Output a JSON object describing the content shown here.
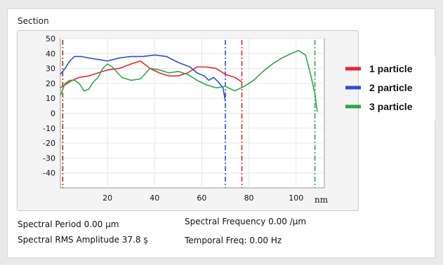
{
  "section_label": "Section",
  "x_unit_label": "nm",
  "info": {
    "spectral_period": "Spectral Period 0.00 µm",
    "spectral_frequency": "Spectral Frequency 0.00 /µm",
    "spectral_rms": "Spectral RMS Amplitude 37.8 ş",
    "temporal_freq": "Temporal Freq: 0.00 Hz"
  },
  "chart_data": {
    "type": "line",
    "xlim": [
      0,
      112
    ],
    "ylim": [
      -50,
      50
    ],
    "x_ticks": [
      20,
      40,
      60,
      80,
      100
    ],
    "y_ticks": [
      50,
      40,
      30,
      20,
      10,
      0,
      -10,
      -20,
      -30,
      -40
    ],
    "grid": true,
    "legend_position": "right",
    "series": [
      {
        "name": "1 particle",
        "color": "#e8262b",
        "x": [
          0,
          2,
          5,
          8,
          12,
          16,
          20,
          25,
          30,
          34,
          38,
          42,
          46,
          50,
          54,
          58,
          62,
          66,
          70,
          74,
          77
        ],
        "y": [
          17,
          19,
          22,
          24,
          25,
          27,
          29,
          30,
          33,
          35,
          30,
          27,
          25,
          25,
          27,
          31,
          31,
          30,
          26,
          24,
          21
        ]
      },
      {
        "name": "2 particle",
        "color": "#2c4fd6",
        "x": [
          0,
          2,
          4,
          6,
          9,
          12,
          16,
          20,
          25,
          30,
          35,
          40,
          45,
          50,
          55,
          58,
          61,
          63,
          65,
          67,
          69,
          70
        ],
        "y": [
          26,
          30,
          35,
          38,
          38,
          37,
          36,
          35,
          37,
          38,
          38,
          39,
          38,
          34,
          31,
          27,
          25,
          22,
          24,
          21,
          17,
          8
        ]
      },
      {
        "name": "3 particle",
        "color": "#2ea54a",
        "x": [
          0,
          2,
          4,
          6,
          8,
          10,
          12,
          14,
          16,
          18,
          20,
          22,
          26,
          30,
          34,
          38,
          42,
          46,
          50,
          54,
          58,
          62,
          66,
          70,
          74,
          78,
          82,
          86,
          90,
          94,
          98,
          101,
          104,
          106,
          108,
          109
        ],
        "y": [
          12,
          20,
          22,
          22,
          20,
          15,
          16,
          21,
          24,
          30,
          33,
          31,
          24,
          22,
          23,
          30,
          29,
          27,
          28,
          26,
          22,
          19,
          17,
          18,
          15,
          18,
          22,
          28,
          33,
          37,
          40,
          42,
          39,
          27,
          13,
          1
        ]
      }
    ],
    "markers": [
      {
        "x": 1,
        "color": "#8b3a1a"
      },
      {
        "x": 70,
        "color": "#2c4fd6"
      },
      {
        "x": 77,
        "color": "#e8262b"
      },
      {
        "x": 108,
        "color": "#2ea54a"
      }
    ]
  }
}
